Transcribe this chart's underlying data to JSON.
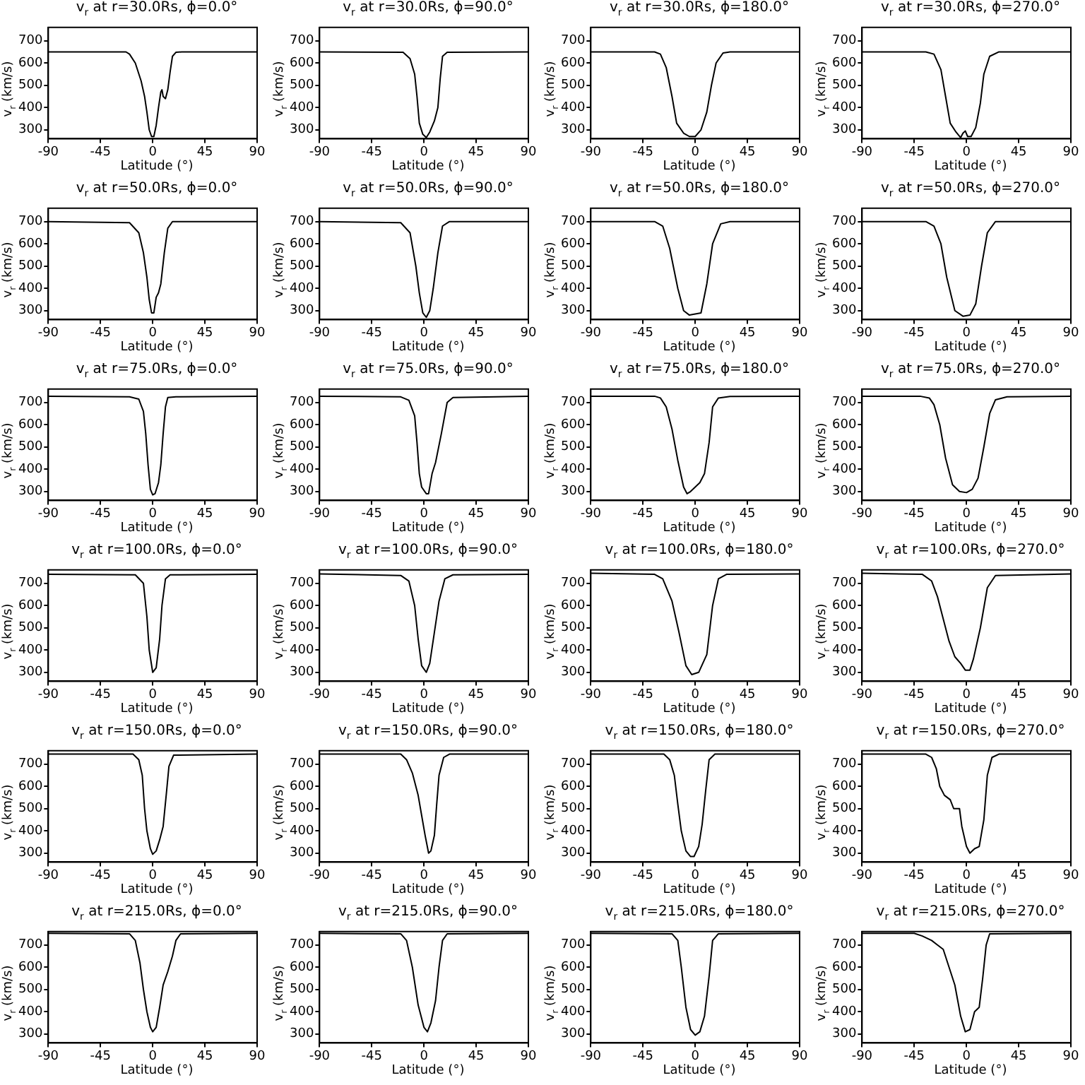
{
  "chart_data": [
    {
      "type": "line",
      "title": "v$_{r}$ at r=30.0Rs, ϕ=0.0°",
      "xlabel": "Latitude (°)",
      "ylabel": "v$_{r}$ (km/s)",
      "xlim": [
        -90,
        90
      ],
      "xticks": [
        -90,
        -45,
        0,
        45,
        90
      ],
      "ylim": [
        260,
        760
      ],
      "yticks": [
        300,
        400,
        500,
        600,
        700
      ],
      "color": "#000000",
      "x": [
        -90,
        -23,
        -20,
        -15,
        -10,
        -7,
        -5,
        -3,
        -1,
        1,
        3,
        5,
        7,
        8,
        9,
        11,
        13,
        15,
        17,
        20,
        25,
        90
      ],
      "values": [
        650,
        650,
        640,
        600,
        520,
        450,
        380,
        300,
        270,
        270,
        320,
        400,
        470,
        480,
        450,
        440,
        480,
        560,
        630,
        648,
        650,
        650
      ]
    },
    {
      "type": "line",
      "title": "v$_{r}$ at r=30.0Rs, ϕ=90.0°",
      "xlabel": "Latitude (°)",
      "ylabel": "v$_{r}$ (km/s)",
      "xlim": [
        -90,
        90
      ],
      "xticks": [
        -90,
        -45,
        0,
        45,
        90
      ],
      "ylim": [
        260,
        760
      ],
      "yticks": [
        300,
        400,
        500,
        600,
        700
      ],
      "color": "#000000",
      "x": [
        -90,
        -18,
        -12,
        -8,
        -6,
        -4,
        -1,
        2,
        5,
        9,
        12,
        14,
        16,
        20,
        90
      ],
      "values": [
        650,
        648,
        620,
        550,
        450,
        330,
        280,
        265,
        290,
        340,
        400,
        530,
        630,
        648,
        650
      ]
    },
    {
      "type": "line",
      "title": "v$_{r}$ at r=30.0Rs, ϕ=180.0°",
      "xlabel": "Latitude (°)",
      "ylabel": "v$_{r}$ (km/s)",
      "xlim": [
        -90,
        90
      ],
      "xticks": [
        -90,
        -45,
        0,
        45,
        90
      ],
      "ylim": [
        260,
        760
      ],
      "yticks": [
        300,
        400,
        500,
        600,
        700
      ],
      "color": "#000000",
      "x": [
        -90,
        -35,
        -30,
        -25,
        -20,
        -16,
        -10,
        -5,
        0,
        5,
        10,
        14,
        18,
        24,
        30,
        90
      ],
      "values": [
        650,
        650,
        640,
        580,
        450,
        330,
        285,
        270,
        270,
        300,
        380,
        500,
        600,
        645,
        650,
        650
      ]
    },
    {
      "type": "line",
      "title": "v$_{r}$ at r=30.0Rs, ϕ=270.0°",
      "xlabel": "Latitude (°)",
      "ylabel": "v$_{r}$ (km/s)",
      "xlim": [
        -90,
        90
      ],
      "xticks": [
        -90,
        -45,
        0,
        45,
        90
      ],
      "ylim": [
        260,
        760
      ],
      "yticks": [
        300,
        400,
        500,
        600,
        700
      ],
      "color": "#000000",
      "x": [
        -90,
        -35,
        -28,
        -22,
        -18,
        -14,
        -9,
        -5,
        -3,
        -1,
        1,
        4,
        8,
        12,
        15,
        20,
        28,
        90
      ],
      "values": [
        650,
        650,
        640,
        570,
        450,
        330,
        290,
        265,
        285,
        295,
        270,
        270,
        310,
        420,
        550,
        630,
        650,
        650
      ]
    },
    {
      "type": "line",
      "title": "v$_{r}$ at r=50.0Rs, ϕ=0.0°",
      "xlabel": "Latitude (°)",
      "ylabel": "v$_{r}$ (km/s)",
      "xlim": [
        -90,
        90
      ],
      "xticks": [
        -90,
        -45,
        0,
        45,
        90
      ],
      "ylim": [
        260,
        760
      ],
      "yticks": [
        300,
        400,
        500,
        600,
        700
      ],
      "color": "#000000",
      "x": [
        -90,
        -20,
        -12,
        -8,
        -5,
        -3,
        -1,
        1,
        3,
        5,
        7,
        10,
        13,
        17,
        90
      ],
      "values": [
        700,
        695,
        650,
        560,
        450,
        350,
        290,
        290,
        360,
        380,
        420,
        560,
        670,
        700,
        700
      ]
    },
    {
      "type": "line",
      "title": "v$_{r}$ at r=50.0Rs, ϕ=90.0°",
      "xlabel": "Latitude (°)",
      "ylabel": "v$_{r}$ (km/s)",
      "xlim": [
        -90,
        90
      ],
      "xticks": [
        -90,
        -45,
        0,
        45,
        90
      ],
      "ylim": [
        260,
        760
      ],
      "yticks": [
        300,
        400,
        500,
        600,
        700
      ],
      "color": "#000000",
      "x": [
        -90,
        -20,
        -12,
        -7,
        -4,
        -1,
        2,
        5,
        8,
        12,
        16,
        22,
        90
      ],
      "values": [
        700,
        695,
        650,
        500,
        380,
        290,
        270,
        300,
        400,
        560,
        680,
        700,
        700
      ]
    },
    {
      "type": "line",
      "title": "v$_{r}$ at r=50.0Rs, ϕ=180.0°",
      "xlabel": "Latitude (°)",
      "ylabel": "v$_{r}$ (km/s)",
      "xlim": [
        -90,
        90
      ],
      "xticks": [
        -90,
        -45,
        0,
        45,
        90
      ],
      "ylim": [
        260,
        760
      ],
      "yticks": [
        300,
        400,
        500,
        600,
        700
      ],
      "color": "#000000",
      "x": [
        -90,
        -35,
        -28,
        -22,
        -15,
        -10,
        -5,
        0,
        5,
        10,
        15,
        22,
        30,
        90
      ],
      "values": [
        700,
        700,
        680,
        580,
        400,
        300,
        280,
        285,
        290,
        420,
        600,
        690,
        700,
        700
      ]
    },
    {
      "type": "line",
      "title": "v$_{r}$ at r=50.0Rs, ϕ=270.0°",
      "xlabel": "Latitude (°)",
      "ylabel": "v$_{r}$ (km/s)",
      "xlim": [
        -90,
        90
      ],
      "xticks": [
        -90,
        -45,
        0,
        45,
        90
      ],
      "ylim": [
        260,
        760
      ],
      "yticks": [
        300,
        400,
        500,
        600,
        700
      ],
      "color": "#000000",
      "x": [
        -90,
        -35,
        -28,
        -22,
        -17,
        -10,
        -3,
        3,
        8,
        13,
        18,
        25,
        90
      ],
      "values": [
        700,
        700,
        680,
        600,
        450,
        300,
        275,
        280,
        330,
        500,
        650,
        700,
        700
      ]
    },
    {
      "type": "line",
      "title": "v$_{r}$ at r=75.0Rs, ϕ=0.0°",
      "xlabel": "Latitude (°)",
      "ylabel": "v$_{r}$ (km/s)",
      "xlim": [
        -90,
        90
      ],
      "xticks": [
        -90,
        -45,
        0,
        45,
        90
      ],
      "ylim": [
        260,
        760
      ],
      "yticks": [
        300,
        400,
        500,
        600,
        700
      ],
      "color": "#000000",
      "x": [
        -90,
        -20,
        -12,
        -8,
        -6,
        -4,
        -2,
        0,
        2,
        5,
        7,
        9,
        11,
        13,
        20,
        90
      ],
      "values": [
        728,
        725,
        715,
        660,
        560,
        420,
        310,
        285,
        290,
        340,
        420,
        560,
        680,
        722,
        725,
        728
      ]
    },
    {
      "type": "line",
      "title": "v$_{r}$ at r=75.0Rs, ϕ=90.0°",
      "xlabel": "Latitude (°)",
      "ylabel": "v$_{r}$ (km/s)",
      "xlim": [
        -90,
        90
      ],
      "xticks": [
        -90,
        -45,
        0,
        45,
        90
      ],
      "ylim": [
        260,
        760
      ],
      "yticks": [
        300,
        400,
        500,
        600,
        700
      ],
      "color": "#000000",
      "x": [
        -90,
        -20,
        -13,
        -8,
        -6,
        -4,
        -2,
        2,
        4,
        7,
        10,
        15,
        20,
        25,
        90
      ],
      "values": [
        728,
        725,
        710,
        640,
        520,
        380,
        320,
        290,
        290,
        380,
        430,
        560,
        700,
        722,
        728
      ]
    },
    {
      "type": "line",
      "title": "v$_{r}$ at r=75.0Rs, ϕ=180.0°",
      "xlabel": "Latitude (°)",
      "ylabel": "v$_{r}$ (km/s)",
      "xlim": [
        -90,
        90
      ],
      "xticks": [
        -90,
        -45,
        0,
        45,
        90
      ],
      "ylim": [
        260,
        760
      ],
      "yticks": [
        300,
        400,
        500,
        600,
        700
      ],
      "color": "#000000",
      "x": [
        -90,
        -35,
        -30,
        -25,
        -20,
        -15,
        -10,
        -7,
        -4,
        0,
        4,
        8,
        12,
        15,
        20,
        30,
        90
      ],
      "values": [
        728,
        728,
        720,
        680,
        580,
        440,
        320,
        290,
        300,
        320,
        340,
        380,
        520,
        680,
        720,
        727,
        728
      ]
    },
    {
      "type": "line",
      "title": "v$_{r}$ at r=75.0Rs, ϕ=270.0°",
      "xlabel": "Latitude (°)",
      "ylabel": "v$_{r}$ (km/s)",
      "xlim": [
        -90,
        90
      ],
      "xticks": [
        -90,
        -45,
        0,
        45,
        90
      ],
      "ylim": [
        260,
        760
      ],
      "yticks": [
        300,
        400,
        500,
        600,
        700
      ],
      "color": "#000000",
      "x": [
        -90,
        -40,
        -32,
        -28,
        -23,
        -18,
        -12,
        -6,
        0,
        5,
        10,
        15,
        20,
        25,
        35,
        90
      ],
      "values": [
        728,
        728,
        720,
        690,
        600,
        450,
        330,
        300,
        295,
        310,
        360,
        500,
        650,
        712,
        725,
        728
      ]
    },
    {
      "type": "line",
      "title": "v$_{r}$ at r=100.0Rs, ϕ=0.0°",
      "xlabel": "Latitude (°)",
      "ylabel": "v$_{r}$ (km/s)",
      "xlim": [
        -90,
        90
      ],
      "xticks": [
        -90,
        -45,
        0,
        45,
        90
      ],
      "ylim": [
        260,
        760
      ],
      "yticks": [
        300,
        400,
        500,
        600,
        700
      ],
      "color": "#000000",
      "x": [
        -90,
        -15,
        -8,
        -5,
        -3,
        0,
        3,
        6,
        8,
        11,
        15,
        90
      ],
      "values": [
        740,
        738,
        700,
        550,
        400,
        300,
        320,
        450,
        600,
        720,
        738,
        740
      ]
    },
    {
      "type": "line",
      "title": "v$_{r}$ at r=100.0Rs, ϕ=90.0°",
      "xlabel": "Latitude (°)",
      "ylabel": "v$_{r}$ (km/s)",
      "xlim": [
        -90,
        90
      ],
      "xticks": [
        -90,
        -45,
        0,
        45,
        90
      ],
      "ylim": [
        260,
        760
      ],
      "yticks": [
        300,
        400,
        500,
        600,
        700
      ],
      "color": "#000000",
      "x": [
        -90,
        -20,
        -13,
        -8,
        -5,
        -2,
        2,
        5,
        9,
        13,
        18,
        25,
        90
      ],
      "values": [
        742,
        735,
        710,
        600,
        450,
        330,
        300,
        340,
        480,
        620,
        720,
        738,
        740
      ]
    },
    {
      "type": "line",
      "title": "v$_{r}$ at r=100.0Rs, ϕ=180.0°",
      "xlabel": "Latitude (°)",
      "ylabel": "v$_{r}$ (km/s)",
      "xlim": [
        -90,
        90
      ],
      "xticks": [
        -90,
        -45,
        0,
        45,
        90
      ],
      "ylim": [
        260,
        760
      ],
      "yticks": [
        300,
        400,
        500,
        600,
        700
      ],
      "color": "#000000",
      "x": [
        -90,
        -35,
        -28,
        -20,
        -14,
        -8,
        -3,
        3,
        10,
        15,
        20,
        27,
        90
      ],
      "values": [
        745,
        740,
        720,
        620,
        480,
        330,
        290,
        300,
        380,
        600,
        720,
        740,
        742
      ]
    },
    {
      "type": "line",
      "title": "v$_{r}$ at r=100.0Rs, ϕ=270.0°",
      "xlabel": "Latitude (°)",
      "ylabel": "v$_{r}$ (km/s)",
      "xlim": [
        -90,
        90
      ],
      "xticks": [
        -90,
        -45,
        0,
        45,
        90
      ],
      "ylim": [
        260,
        760
      ],
      "yticks": [
        300,
        400,
        500,
        600,
        700
      ],
      "color": "#000000",
      "x": [
        -90,
        -38,
        -30,
        -25,
        -20,
        -15,
        -10,
        -5,
        -1,
        3,
        6,
        12,
        18,
        25,
        90
      ],
      "values": [
        745,
        740,
        710,
        640,
        540,
        440,
        370,
        340,
        310,
        310,
        360,
        500,
        680,
        735,
        742
      ]
    },
    {
      "type": "line",
      "title": "v$_{r}$ at r=150.0Rs, ϕ=0.0°",
      "xlabel": "Latitude (°)",
      "ylabel": "v$_{r}$ (km/s)",
      "xlim": [
        -90,
        90
      ],
      "xticks": [
        -90,
        -45,
        0,
        45,
        90
      ],
      "ylim": [
        260,
        760
      ],
      "yticks": [
        300,
        400,
        500,
        600,
        700
      ],
      "color": "#000000",
      "x": [
        -90,
        -17,
        -12,
        -9,
        -7,
        -5,
        -2,
        0,
        3,
        6,
        9,
        12,
        14,
        18,
        90
      ],
      "values": [
        745,
        745,
        720,
        650,
        500,
        400,
        320,
        295,
        310,
        360,
        420,
        580,
        690,
        740,
        745
      ]
    },
    {
      "type": "line",
      "title": "v$_{r}$ at r=150.0Rs, ϕ=90.0°",
      "xlabel": "Latitude (°)",
      "ylabel": "v$_{r}$ (km/s)",
      "xlim": [
        -90,
        90
      ],
      "xticks": [
        -90,
        -45,
        0,
        45,
        90
      ],
      "ylim": [
        260,
        760
      ],
      "yticks": [
        300,
        400,
        500,
        600,
        700
      ],
      "color": "#000000",
      "x": [
        -90,
        -20,
        -15,
        -10,
        -5,
        -2,
        1,
        4,
        6,
        9,
        11,
        13,
        17,
        22,
        90
      ],
      "values": [
        745,
        745,
        720,
        660,
        560,
        470,
        380,
        300,
        310,
        380,
        520,
        650,
        730,
        745,
        745
      ]
    },
    {
      "type": "line",
      "title": "v$_{r}$ at r=150.0Rs, ϕ=180.0°",
      "xlabel": "Latitude (°)",
      "ylabel": "v$_{r}$ (km/s)",
      "xlim": [
        -90,
        90
      ],
      "xticks": [
        -90,
        -45,
        0,
        45,
        90
      ],
      "ylim": [
        260,
        760
      ],
      "yticks": [
        300,
        400,
        500,
        600,
        700
      ],
      "color": "#000000",
      "x": [
        -90,
        -27,
        -22,
        -18,
        -15,
        -12,
        -8,
        -4,
        -1,
        3,
        6,
        9,
        12,
        17,
        90
      ],
      "values": [
        745,
        745,
        720,
        650,
        520,
        400,
        310,
        285,
        285,
        330,
        430,
        580,
        720,
        745,
        745
      ]
    },
    {
      "type": "line",
      "title": "v$_{r}$ at r=150.0Rs, ϕ=270.0°",
      "xlabel": "Latitude (°)",
      "ylabel": "v$_{r}$ (km/s)",
      "xlim": [
        -90,
        90
      ],
      "xticks": [
        -90,
        -45,
        0,
        45,
        90
      ],
      "ylim": [
        260,
        760
      ],
      "yticks": [
        300,
        400,
        500,
        600,
        700
      ],
      "color": "#000000",
      "x": [
        -90,
        -35,
        -30,
        -26,
        -23,
        -19,
        -14,
        -11,
        -6,
        -4,
        0,
        3,
        7,
        11,
        15,
        18,
        22,
        28,
        90
      ],
      "values": [
        745,
        745,
        730,
        680,
        600,
        560,
        540,
        500,
        500,
        420,
        330,
        300,
        320,
        330,
        450,
        650,
        730,
        745,
        745
      ]
    },
    {
      "type": "line",
      "title": "v$_{r}$ at r=215.0Rs, ϕ=0.0°",
      "xlabel": "Latitude (°)",
      "ylabel": "v$_{r}$ (km/s)",
      "xlim": [
        -90,
        90
      ],
      "xticks": [
        -90,
        -45,
        0,
        45,
        90
      ],
      "ylim": [
        260,
        760
      ],
      "yticks": [
        300,
        400,
        500,
        600,
        700
      ],
      "color": "#000000",
      "x": [
        -90,
        -20,
        -15,
        -11,
        -8,
        -5,
        -2,
        0,
        3,
        6,
        9,
        13,
        17,
        20,
        24,
        90
      ],
      "values": [
        752,
        750,
        720,
        620,
        500,
        400,
        330,
        310,
        330,
        420,
        520,
        580,
        650,
        720,
        750,
        752
      ]
    },
    {
      "type": "line",
      "title": "v$_{r}$ at r=215.0Rs, ϕ=90.0°",
      "xlabel": "Latitude (°)",
      "ylabel": "v$_{r}$ (km/s)",
      "xlim": [
        -90,
        90
      ],
      "xticks": [
        -90,
        -45,
        0,
        45,
        90
      ],
      "ylim": [
        260,
        760
      ],
      "yticks": [
        300,
        400,
        500,
        600,
        700
      ],
      "color": "#000000",
      "x": [
        -90,
        -20,
        -15,
        -10,
        -5,
        0,
        3,
        6,
        10,
        13,
        16,
        20,
        90
      ],
      "values": [
        752,
        750,
        720,
        600,
        430,
        330,
        310,
        350,
        450,
        600,
        720,
        750,
        752
      ]
    },
    {
      "type": "line",
      "title": "v$_{r}$ at r=215.0Rs, ϕ=180.0°",
      "xlabel": "Latitude (°)",
      "ylabel": "v$_{r}$ (km/s)",
      "xlim": [
        -90,
        90
      ],
      "xticks": [
        -90,
        -45,
        0,
        45,
        90
      ],
      "ylim": [
        260,
        760
      ],
      "yticks": [
        300,
        400,
        500,
        600,
        700
      ],
      "color": "#000000",
      "x": [
        -90,
        -20,
        -15,
        -12,
        -8,
        -4,
        0,
        4,
        8,
        12,
        15,
        20,
        90
      ],
      "values": [
        752,
        750,
        720,
        600,
        420,
        320,
        295,
        310,
        380,
        560,
        720,
        750,
        752
      ]
    },
    {
      "type": "line",
      "title": "v$_{r}$ at r=215.0Rs, ϕ=270.0°",
      "xlabel": "Latitude (°)",
      "ylabel": "v$_{r}$ (km/s)",
      "xlim": [
        -90,
        90
      ],
      "xticks": [
        -90,
        -45,
        0,
        45,
        90
      ],
      "ylim": [
        260,
        760
      ],
      "yticks": [
        300,
        400,
        500,
        600,
        700
      ],
      "color": "#000000",
      "x": [
        -90,
        -45,
        -38,
        -30,
        -25,
        -20,
        -15,
        -10,
        -5,
        -1,
        3,
        7,
        11,
        14,
        17,
        20,
        90
      ],
      "values": [
        752,
        752,
        740,
        720,
        700,
        680,
        600,
        520,
        380,
        310,
        320,
        400,
        420,
        550,
        700,
        750,
        752
      ]
    }
  ]
}
